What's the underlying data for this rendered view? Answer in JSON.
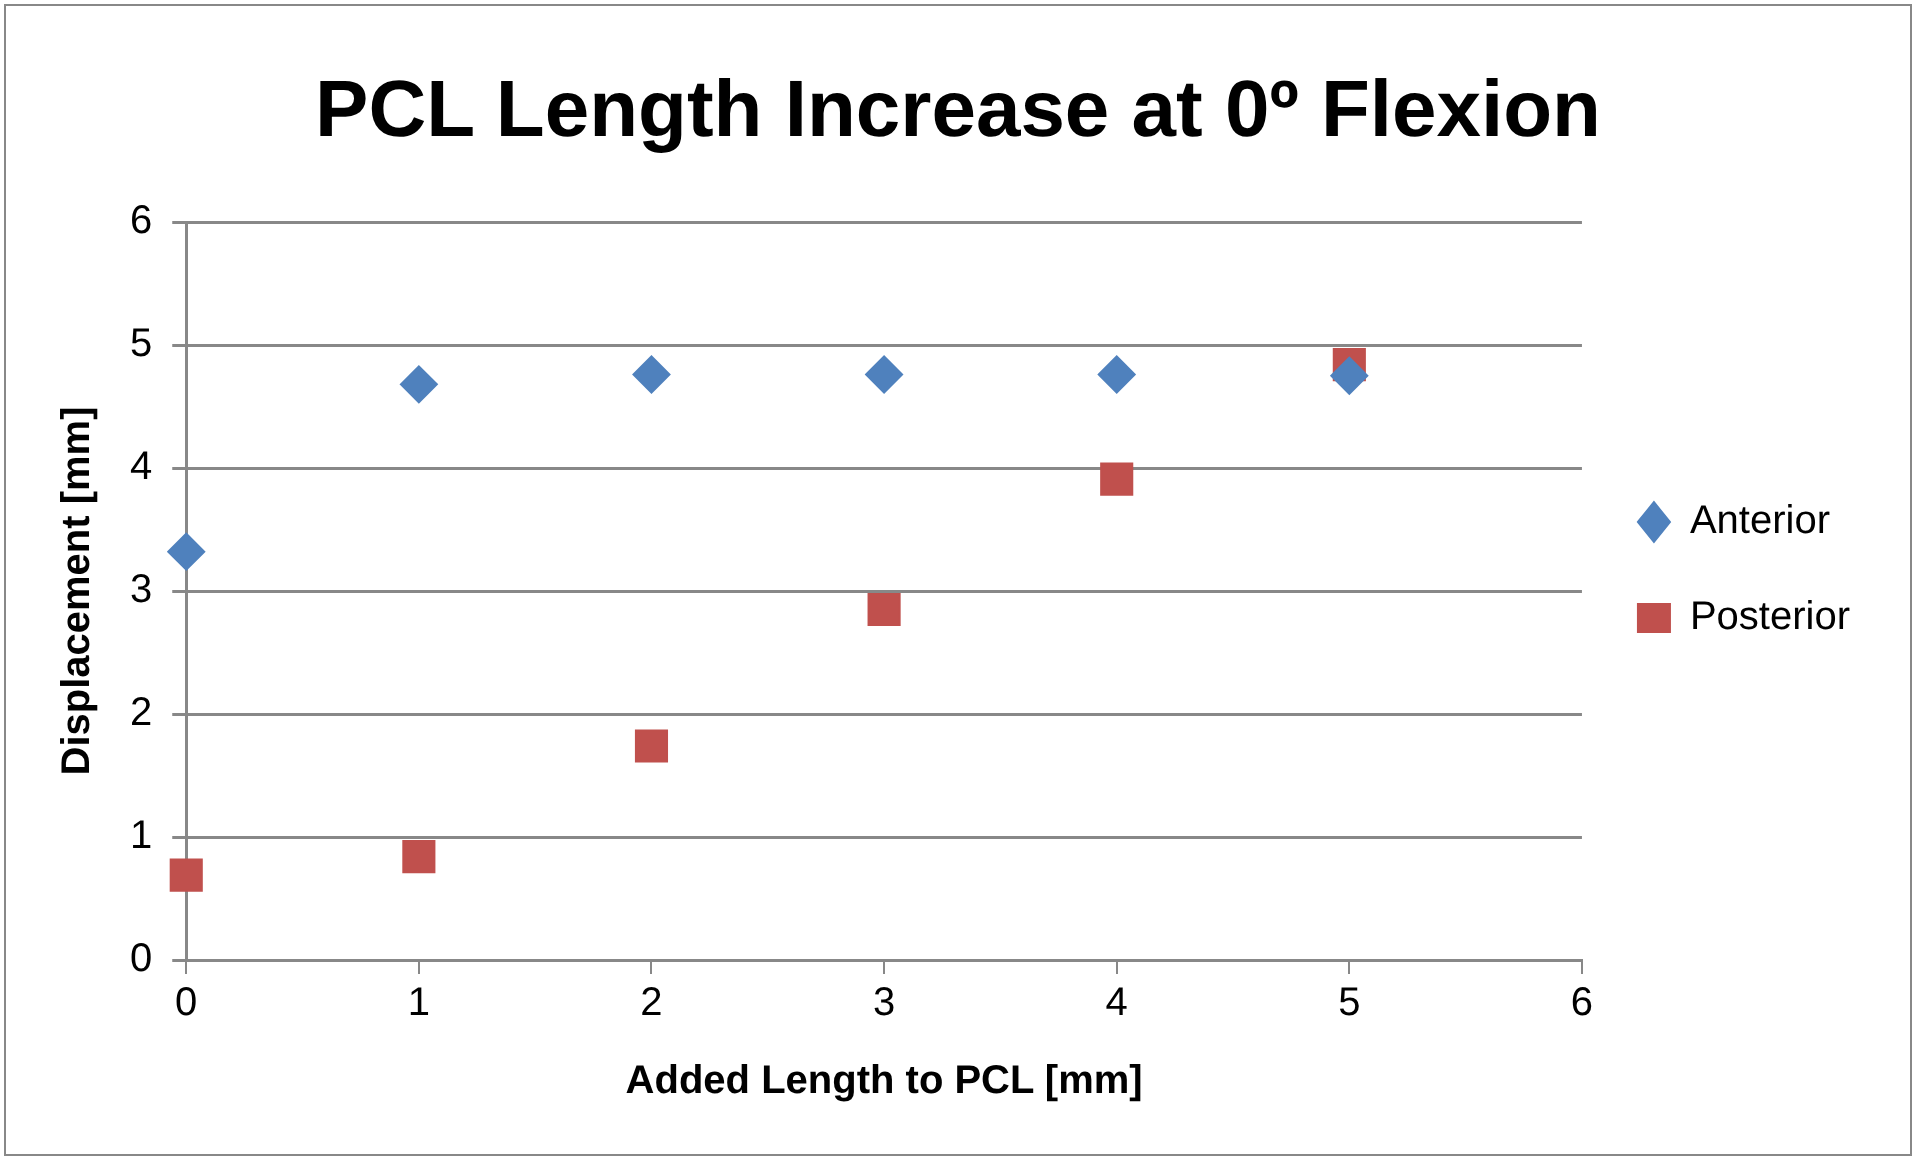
{
  "chart_data": {
    "type": "scatter",
    "title": "PCL Length Increase at 0º Flexion",
    "xlabel": "Added Length to PCL [mm]",
    "ylabel": "Displacement [mm]",
    "x": [
      0,
      1,
      2,
      3,
      4,
      5
    ],
    "series": [
      {
        "name": "Anterior",
        "color": "#4f81bd",
        "marker": "diamond",
        "values": [
          3.32,
          4.68,
          4.76,
          4.76,
          4.76,
          4.75
        ]
      },
      {
        "name": "Posterior",
        "color": "#c0504d",
        "marker": "square",
        "values": [
          0.69,
          0.84,
          1.74,
          2.85,
          3.91,
          4.84
        ]
      }
    ],
    "xlim": [
      0,
      6
    ],
    "xticks": [
      0,
      1,
      2,
      3,
      4,
      5,
      6
    ],
    "ylim": [
      0,
      6
    ],
    "yticks": [
      0,
      1,
      2,
      3,
      4,
      5,
      6
    ],
    "grid": "y",
    "legend": "right"
  }
}
